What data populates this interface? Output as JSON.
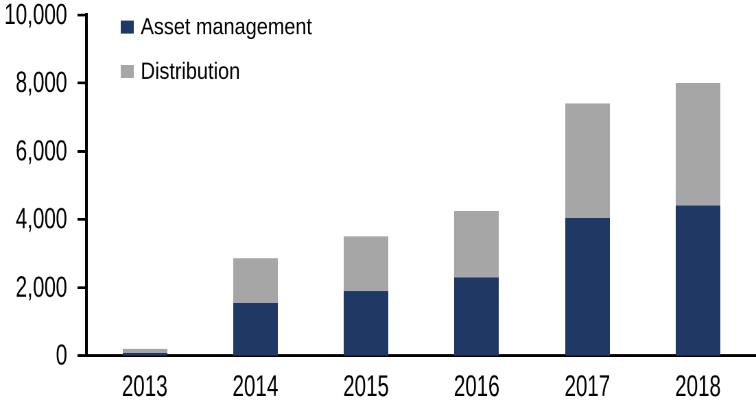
{
  "chart_data": {
    "type": "bar",
    "stacked": true,
    "title": "",
    "xlabel": "",
    "ylabel": "",
    "categories": [
      "2013",
      "2014",
      "2015",
      "2016",
      "2017",
      "2018"
    ],
    "series": [
      {
        "name": "Asset management",
        "color": "#1F3864",
        "values": [
          80,
          1550,
          1900,
          2300,
          4050,
          4400
        ]
      },
      {
        "name": "Distribution",
        "color": "#A6A6A6",
        "values": [
          120,
          1300,
          1600,
          1950,
          3350,
          3600
        ]
      }
    ],
    "stack_totals": [
      200,
      2850,
      3500,
      4250,
      7400,
      8000
    ],
    "ylim": [
      0,
      10000
    ],
    "yticks": [
      0,
      2000,
      4000,
      6000,
      8000,
      10000
    ],
    "ytick_labels": [
      "0",
      "2,000",
      "4,000",
      "6,000",
      "8,000",
      "10,000"
    ],
    "legend_position": "top-left",
    "grid": false,
    "axis_color": "#000000",
    "background_color": "#FFFFFF"
  }
}
